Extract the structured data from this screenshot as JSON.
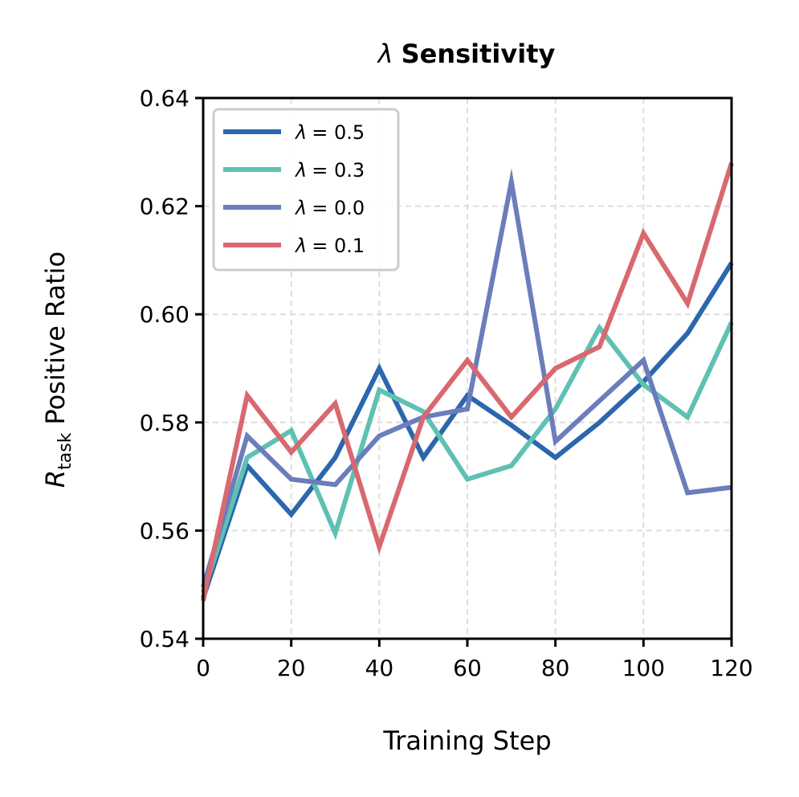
{
  "chart_data": {
    "type": "line",
    "title": "λ Sensitivity",
    "title_symbol": "λ",
    "title_text": "Sensitivity",
    "xlabel": "Training Step",
    "ylabel": {
      "symbol": "R",
      "subscript": "task",
      "text": "Positive Ratio"
    },
    "xlim": [
      0,
      120
    ],
    "ylim": [
      0.54,
      0.64
    ],
    "xticks": [
      0,
      20,
      40,
      60,
      80,
      100,
      120
    ],
    "xtick_labels": [
      "0",
      "20",
      "40",
      "60",
      "80",
      "100",
      "120"
    ],
    "yticks": [
      0.54,
      0.56,
      0.58,
      0.6,
      0.62,
      0.64
    ],
    "ytick_labels": [
      "0.54",
      "0.56",
      "0.58",
      "0.60",
      "0.62",
      "0.64"
    ],
    "grid": true,
    "legend_position": "top-left",
    "x": [
      0,
      10,
      20,
      30,
      40,
      50,
      60,
      70,
      80,
      90,
      100,
      110,
      120
    ],
    "series": [
      {
        "name": "λ = 0.5",
        "symbol": "λ",
        "value_text": "= 0.5",
        "color": "#2b67ad",
        "values": [
          0.5475,
          0.572,
          0.563,
          0.5735,
          0.59,
          0.5735,
          0.585,
          0.5795,
          0.5735,
          0.58,
          0.5875,
          0.5965,
          0.6095
        ]
      },
      {
        "name": "λ = 0.3",
        "symbol": "λ",
        "value_text": "= 0.3",
        "color": "#5ec1b3",
        "values": [
          0.5485,
          0.5735,
          0.5785,
          0.5595,
          0.586,
          0.582,
          0.5695,
          0.572,
          0.5825,
          0.5975,
          0.587,
          0.581,
          0.5985
        ]
      },
      {
        "name": "λ = 0.0",
        "symbol": "λ",
        "value_text": "= 0.0",
        "color": "#6b7dbb",
        "values": [
          0.5495,
          0.5775,
          0.5695,
          0.5685,
          0.5775,
          0.581,
          0.5825,
          0.6245,
          0.5765,
          0.584,
          0.5915,
          0.567,
          0.568
        ]
      },
      {
        "name": "λ = 0.1",
        "symbol": "λ",
        "value_text": "= 0.1",
        "color": "#d9686f",
        "values": [
          0.547,
          0.585,
          0.5745,
          0.5835,
          0.557,
          0.581,
          0.5915,
          0.581,
          0.59,
          0.594,
          0.615,
          0.602,
          0.628
        ]
      }
    ]
  }
}
